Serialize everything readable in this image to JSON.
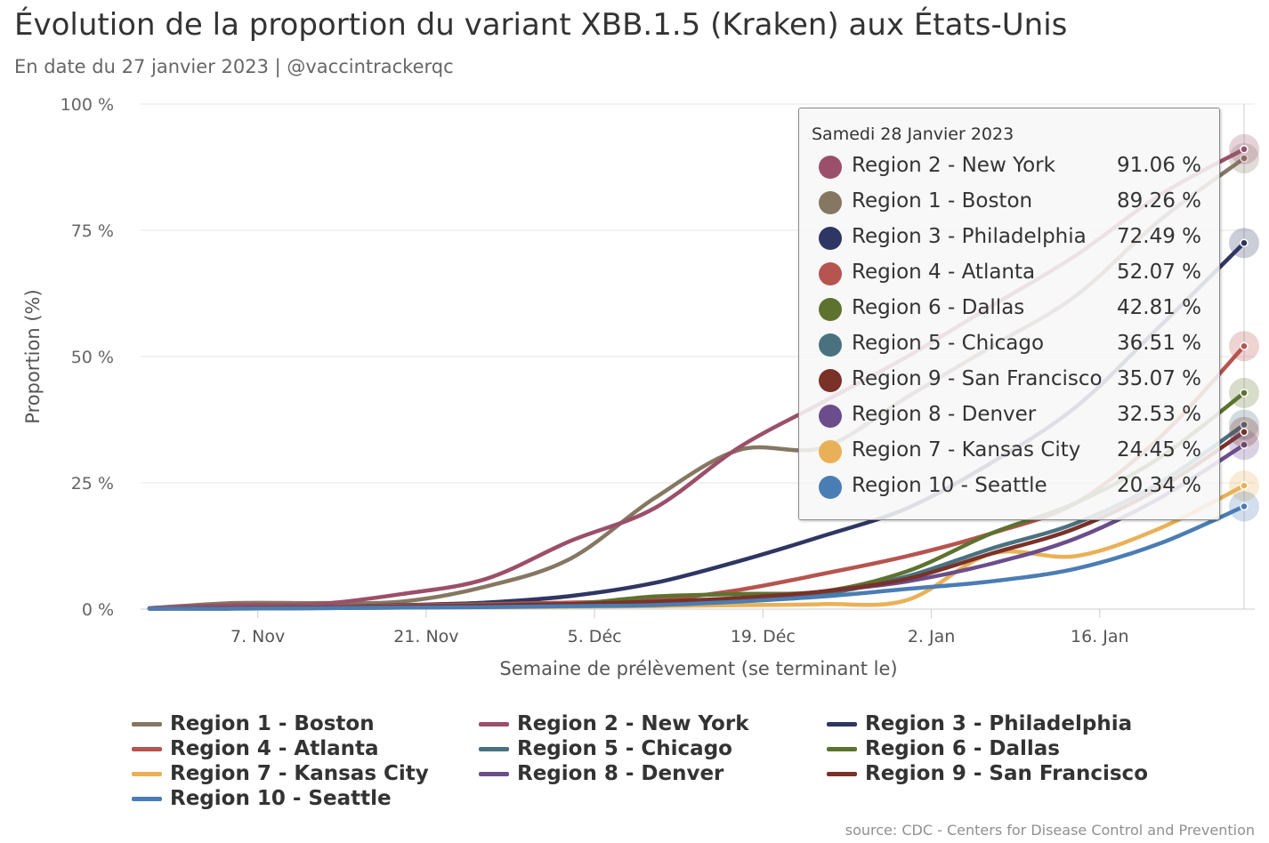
{
  "title": "Évolution de la proportion du variant XBB.1.5 (Kraken) aux États-Unis",
  "subtitle": "En date du 27 janvier 2023 | @vaccintrackerqc",
  "credits": "source: CDC - Centers for Disease Control and Prevention",
  "tooltip": {
    "header": "Samedi 28 Janvier 2023",
    "rows": [
      {
        "name": "Region 2 - New York",
        "value": "91.06 %",
        "color": "#9b4f6a"
      },
      {
        "name": "Region 1 - Boston",
        "value": "89.26 %",
        "color": "#857762"
      },
      {
        "name": "Region 3 - Philadelphia",
        "value": "72.49 %",
        "color": "#2f3663"
      },
      {
        "name": "Region 4 - Atlanta",
        "value": "52.07 %",
        "color": "#b6544f"
      },
      {
        "name": "Region 6 - Dallas",
        "value": "42.81 %",
        "color": "#5e7230"
      },
      {
        "name": "Region 5 - Chicago",
        "value": "36.51 %",
        "color": "#4a7180"
      },
      {
        "name": "Region 9 - San Francisco",
        "value": "35.07 %",
        "color": "#7a3128"
      },
      {
        "name": "Region 8 - Denver",
        "value": "32.53 %",
        "color": "#6b4d8c"
      },
      {
        "name": "Region 7 - Kansas City",
        "value": "24.45 %",
        "color": "#e9b157"
      },
      {
        "name": "Region 10 - Seattle",
        "value": "20.34 %",
        "color": "#4a7db3"
      }
    ]
  },
  "chart_data": {
    "type": "line",
    "xlabel": "Semaine de prélèvement (se terminant le)",
    "ylabel": "Proportion (%)",
    "ylim": [
      0,
      100
    ],
    "yticks": [
      0,
      25,
      50,
      75,
      100
    ],
    "ytick_labels": [
      "0 %",
      "25 %",
      "50 %",
      "75 %",
      "100 %"
    ],
    "x_dates": [
      "2022-10-29",
      "2022-11-05",
      "2022-11-12",
      "2022-11-19",
      "2022-11-26",
      "2022-12-03",
      "2022-12-10",
      "2022-12-17",
      "2022-12-24",
      "2022-12-31",
      "2023-01-07",
      "2023-01-14",
      "2023-01-21",
      "2023-01-28"
    ],
    "xticks": [
      "2022-11-07",
      "2022-11-21",
      "2022-12-05",
      "2022-12-19",
      "2023-01-02",
      "2023-01-16"
    ],
    "xtick_labels": [
      "7. Nov",
      "21. Nov",
      "5. Déc",
      "19. Déc",
      "2. Jan",
      "16. Jan"
    ],
    "grid": true,
    "legend_placement": "bottom",
    "series": [
      {
        "name": "Region 1 - Boston",
        "color": "#857762",
        "values": [
          0.2,
          1.2,
          1.2,
          1.5,
          4.5,
          10.0,
          22.0,
          31.5,
          32.0,
          42.0,
          52.0,
          62.0,
          77.0,
          89.26
        ]
      },
      {
        "name": "Region 2 - New York",
        "color": "#9b4f6a",
        "values": [
          0.2,
          0.8,
          1.0,
          3.0,
          6.0,
          13.5,
          20.0,
          32.0,
          41.0,
          50.0,
          60.0,
          70.0,
          82.0,
          91.06
        ]
      },
      {
        "name": "Region 3 - Philadelphia",
        "color": "#2f3663",
        "values": [
          0.1,
          0.2,
          0.4,
          0.8,
          1.3,
          2.6,
          5.2,
          9.5,
          14.5,
          20.0,
          29.0,
          40.0,
          56.0,
          72.49
        ]
      },
      {
        "name": "Region 4 - Atlanta",
        "color": "#b6544f",
        "values": [
          0.1,
          0.2,
          0.4,
          0.7,
          1.0,
          1.3,
          1.8,
          3.8,
          7.0,
          10.5,
          15.0,
          21.0,
          34.0,
          52.07
        ]
      },
      {
        "name": "Region 5 - Chicago",
        "color": "#4a7180",
        "values": [
          0.1,
          0.2,
          0.3,
          0.5,
          0.8,
          1.0,
          1.3,
          1.8,
          3.0,
          6.5,
          12.0,
          17.0,
          25.0,
          36.51
        ]
      },
      {
        "name": "Region 6 - Dallas",
        "color": "#5e7230",
        "values": [
          0.1,
          0.2,
          0.3,
          0.5,
          0.7,
          1.0,
          2.5,
          3.0,
          3.5,
          7.5,
          15.0,
          21.0,
          30.0,
          42.81
        ]
      },
      {
        "name": "Region 7 - Kansas City",
        "color": "#e9b157",
        "values": [
          0.1,
          0.1,
          0.2,
          0.3,
          0.4,
          0.5,
          0.6,
          0.8,
          1.0,
          1.8,
          11.0,
          10.5,
          16.0,
          24.45
        ]
      },
      {
        "name": "Region 8 - Denver",
        "color": "#6b4d8c",
        "values": [
          0.1,
          0.1,
          0.2,
          0.3,
          0.5,
          0.8,
          1.3,
          2.0,
          3.5,
          5.5,
          9.0,
          14.0,
          22.0,
          32.53
        ]
      },
      {
        "name": "Region 9 - San Francisco",
        "color": "#7a3128",
        "values": [
          0.1,
          0.2,
          0.3,
          0.5,
          0.7,
          1.0,
          1.5,
          2.2,
          3.5,
          6.0,
          11.0,
          16.0,
          24.0,
          35.07
        ]
      },
      {
        "name": "Region 10 - Seattle",
        "color": "#4a7db3",
        "values": [
          0.1,
          0.1,
          0.2,
          0.3,
          0.4,
          0.6,
          0.8,
          1.5,
          2.5,
          4.0,
          5.5,
          8.0,
          13.0,
          20.34
        ]
      }
    ]
  }
}
